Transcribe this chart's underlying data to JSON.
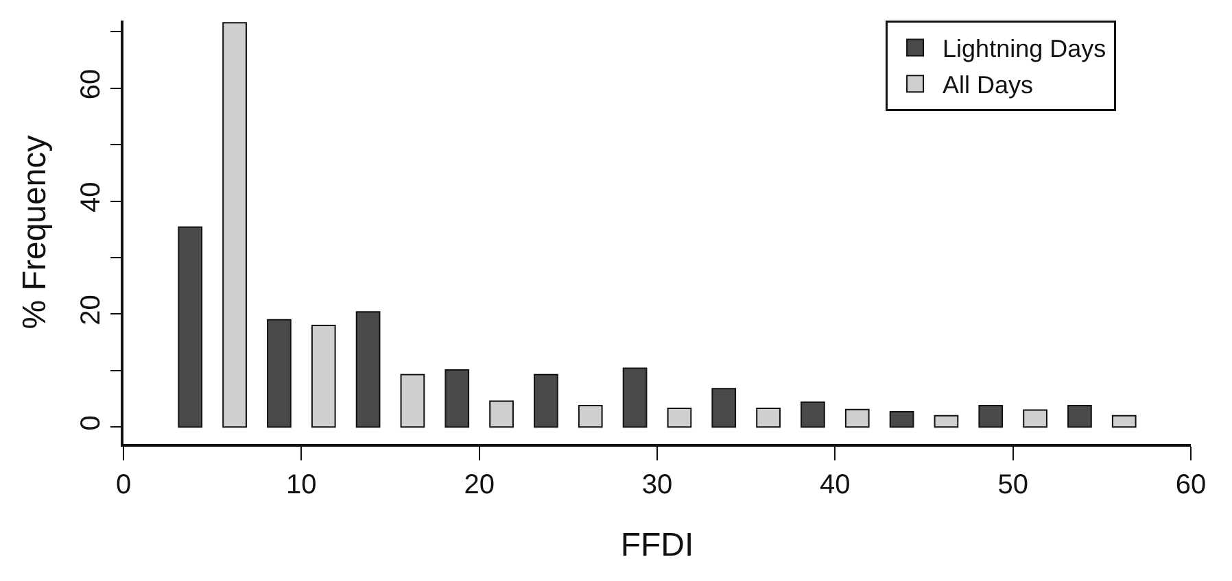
{
  "chart_data": {
    "type": "bar",
    "xlabel": "FFDI",
    "ylabel": "% Frequency",
    "x": [
      5,
      10,
      15,
      20,
      25,
      30,
      35,
      40,
      45,
      50,
      55
    ],
    "series": [
      {
        "name": "Lightning Days",
        "color": "#4a4a4a",
        "values": [
          35.4,
          19,
          20.4,
          10.1,
          9.3,
          10.4,
          6.8,
          4.4,
          2.7,
          3.8,
          3.8
        ]
      },
      {
        "name": "All Days",
        "color": "#cfcfcf",
        "values": [
          71.6,
          18,
          9.3,
          4.6,
          3.8,
          3.3,
          3.3,
          3.1,
          2,
          3,
          2
        ]
      }
    ],
    "xlim": [
      0,
      60
    ],
    "xticks": [
      0,
      10,
      20,
      30,
      40,
      50,
      60
    ],
    "ylim": [
      -3,
      72
    ],
    "yticks": [
      0,
      {
        "value": 10,
        "label": null
      },
      20,
      {
        "value": 30,
        "label": null
      },
      40,
      {
        "value": 50,
        "label": null
      },
      60,
      {
        "value": 70,
        "label": null
      }
    ],
    "legend": "top right"
  }
}
